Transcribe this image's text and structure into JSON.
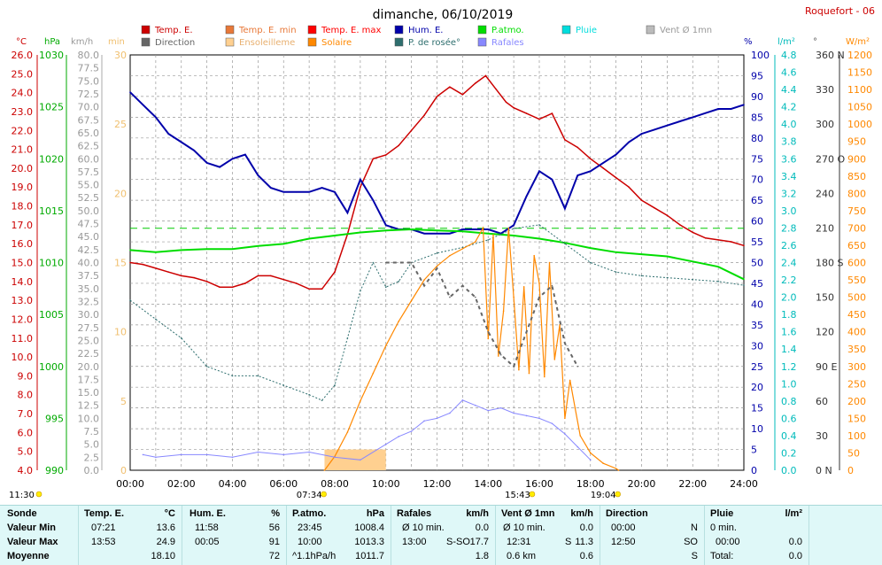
{
  "header": {
    "title": "dimanche, 06/10/2019",
    "station": "Roquefort - 06"
  },
  "legend": [
    {
      "label": "Temp. E.",
      "color": "#cc0000"
    },
    {
      "label": "Temp. E. min",
      "color": "#e87838"
    },
    {
      "label": "Temp. E. max",
      "color": "#ff0000"
    },
    {
      "label": "Hum. E.",
      "color": "#0000aa"
    },
    {
      "label": "P.atmo.",
      "color": "#00dd00"
    },
    {
      "label": "Pluie",
      "color": "#00dddd"
    },
    {
      "label": "Vent Ø 1mn",
      "color": "#bbbbbb"
    },
    {
      "label": "Direction",
      "color": "#666666"
    },
    {
      "label": "Ensoleilleme",
      "color": "#ffd090"
    },
    {
      "label": "Solaire",
      "color": "#ff8800"
    },
    {
      "label": "P. de rosée°",
      "color": "#2e6e6e"
    },
    {
      "label": "Rafales",
      "color": "#8888ff"
    }
  ],
  "axis_units": {
    "temp": "°C",
    "press": "hPa",
    "wind": "km/h",
    "min": "min",
    "hum": "%",
    "rain": "l/m²",
    "dir": "°",
    "solar": "W/m²"
  },
  "axis_ticks": {
    "temp": [
      "26.0",
      "25.0",
      "24.0",
      "23.0",
      "22.0",
      "21.0",
      "20.0",
      "19.0",
      "18.0",
      "17.0",
      "16.0",
      "15.0",
      "14.0",
      "13.0",
      "12.0",
      "11.0",
      "10.0",
      "9.0",
      "8.0",
      "7.0",
      "6.0",
      "5.0",
      "4.0"
    ],
    "press": [
      "1030",
      "1025",
      "1020",
      "1015",
      "1010",
      "1005",
      "1000",
      "995",
      "990"
    ],
    "wind": [
      "80.0",
      "77.5",
      "75.0",
      "72.5",
      "70.0",
      "67.5",
      "65.0",
      "62.5",
      "60.0",
      "57.5",
      "55.0",
      "52.5",
      "50.0",
      "47.5",
      "45.0",
      "42.5",
      "40.0",
      "37.5",
      "35.0",
      "32.5",
      "30.0",
      "27.5",
      "25.0",
      "22.5",
      "20.0",
      "17.5",
      "15.0",
      "12.5",
      "10.0",
      "7.5",
      "5.0",
      "2.5",
      "0.0"
    ],
    "min": [
      "30",
      "25",
      "20",
      "15",
      "10",
      "5",
      "0"
    ],
    "hum": [
      "100",
      "95",
      "90",
      "85",
      "80",
      "75",
      "70",
      "65",
      "60",
      "55",
      "50",
      "45",
      "40",
      "35",
      "30",
      "25",
      "20",
      "15",
      "10",
      "5",
      "0"
    ],
    "rain": [
      "4.8",
      "4.6",
      "4.4",
      "4.2",
      "4.0",
      "3.8",
      "3.6",
      "3.4",
      "3.2",
      "3.0",
      "2.8",
      "2.6",
      "2.4",
      "2.2",
      "2.0",
      "1.8",
      "1.6",
      "1.4",
      "1.2",
      "1.0",
      "0.8",
      "0.6",
      "0.4",
      "0.2",
      "0.0"
    ],
    "dir": [
      "360 N",
      "330",
      "300",
      "270 O",
      "240",
      "210",
      "180 S",
      "150",
      "120",
      "90 E",
      "60",
      "30",
      "0 N"
    ],
    "solar": [
      "1200",
      "1150",
      "1100",
      "1050",
      "1000",
      "950",
      "900",
      "850",
      "800",
      "750",
      "700",
      "650",
      "600",
      "550",
      "500",
      "450",
      "400",
      "350",
      "300",
      "250",
      "200",
      "150",
      "100",
      "50",
      "0"
    ],
    "time": [
      "00:00",
      "02:00",
      "04:00",
      "06:00",
      "08:00",
      "10:00",
      "12:00",
      "14:00",
      "16:00",
      "18:00",
      "20:00",
      "22:00",
      "24:00"
    ]
  },
  "sun_markers": {
    "day_length": "11:30",
    "sunrise": "07:34",
    "noon": "15:43",
    "sunset": "19:04"
  },
  "chart_data": {
    "type": "line",
    "x_unit": "hours",
    "xlim": [
      0,
      24
    ],
    "series": [
      {
        "name": "Temp. E.",
        "unit": "°C",
        "ylim": [
          4,
          26
        ],
        "x": [
          0,
          0.5,
          1,
          1.5,
          2,
          2.5,
          3,
          3.5,
          4,
          4.5,
          5,
          5.5,
          6,
          6.5,
          7,
          7.5,
          8,
          8.5,
          9,
          9.5,
          10,
          10.5,
          11,
          11.5,
          12,
          12.5,
          13,
          13.5,
          13.9,
          14.3,
          14.7,
          15,
          15.5,
          16,
          16.5,
          17,
          17.5,
          18,
          18.5,
          19,
          19.5,
          20,
          20.5,
          21,
          21.5,
          22,
          22.5,
          23,
          23.5,
          24
        ],
        "y": [
          15.0,
          14.9,
          14.7,
          14.5,
          14.3,
          14.2,
          14.0,
          13.7,
          13.7,
          13.9,
          14.3,
          14.3,
          14.1,
          13.9,
          13.6,
          13.6,
          14.5,
          16.5,
          19.0,
          20.5,
          20.7,
          21.2,
          22.0,
          22.8,
          23.8,
          24.3,
          23.9,
          24.5,
          24.9,
          24.2,
          23.5,
          23.2,
          22.9,
          22.6,
          22.9,
          21.5,
          21.1,
          20.5,
          20.0,
          19.5,
          19.0,
          18.3,
          17.9,
          17.5,
          17.0,
          16.6,
          16.3,
          16.2,
          16.1,
          15.9
        ]
      },
      {
        "name": "Hum. E.",
        "unit": "%",
        "ylim": [
          0,
          100
        ],
        "x": [
          0,
          0.5,
          1,
          1.5,
          2,
          2.5,
          3,
          3.5,
          4,
          4.5,
          5,
          5.5,
          6,
          6.5,
          7,
          7.5,
          8,
          8.5,
          9,
          9.5,
          10,
          10.5,
          11,
          11.5,
          12,
          12.5,
          13,
          13.5,
          14,
          14.5,
          15,
          15.5,
          16,
          16.5,
          17,
          17.5,
          18,
          18.5,
          19,
          19.5,
          20,
          20.5,
          21,
          21.5,
          22,
          22.5,
          23,
          23.5,
          24
        ],
        "y": [
          91,
          88,
          85,
          81,
          79,
          77,
          74,
          73,
          75,
          76,
          71,
          68,
          67,
          67,
          67,
          68,
          67,
          62,
          70,
          65,
          59,
          58,
          58,
          57,
          57,
          57,
          58,
          58,
          58,
          57,
          59,
          66,
          72,
          70,
          63,
          71,
          72,
          74,
          76,
          79,
          81,
          82,
          83,
          84,
          85,
          86,
          87,
          87,
          88
        ]
      },
      {
        "name": "P.atmo.",
        "unit": "hPa",
        "ylim": [
          990,
          1030
        ],
        "x": [
          0,
          1,
          2,
          3,
          4,
          5,
          6,
          7,
          8,
          9,
          10,
          11,
          12,
          13,
          14,
          15,
          16,
          17,
          18,
          19,
          20,
          21,
          22,
          23,
          24
        ],
        "y": [
          1011.2,
          1011.0,
          1011.2,
          1011.3,
          1011.3,
          1011.6,
          1011.8,
          1012.3,
          1012.6,
          1012.9,
          1013.1,
          1013.2,
          1013.1,
          1013.0,
          1012.8,
          1012.6,
          1012.3,
          1011.9,
          1011.4,
          1011.0,
          1010.8,
          1010.6,
          1010.1,
          1009.6,
          1008.4
        ]
      },
      {
        "name": "P. de rosée°",
        "unit": "°C",
        "ylim": [
          4,
          26
        ],
        "x": [
          0,
          1,
          2,
          3,
          4,
          5,
          6,
          7,
          7.5,
          8,
          8.5,
          9,
          9.5,
          10,
          10.5,
          11,
          12,
          13,
          14,
          14.5,
          15,
          16,
          17,
          18,
          19,
          20,
          21,
          22,
          23,
          24
        ],
        "y": [
          13.0,
          12.0,
          11.0,
          9.5,
          9.0,
          9.0,
          8.5,
          8.0,
          7.7,
          8.5,
          11.0,
          13.5,
          15.0,
          13.7,
          14.0,
          15.0,
          15.5,
          15.8,
          16.2,
          16.5,
          16.8,
          17.0,
          16.0,
          15.0,
          14.5,
          14.3,
          14.2,
          14.1,
          14.0,
          13.8
        ]
      },
      {
        "name": "Solaire",
        "unit": "W/m²",
        "ylim": [
          0,
          1200
        ],
        "x": [
          7.6,
          8,
          8.5,
          9,
          9.5,
          10,
          10.5,
          11,
          11.5,
          12,
          12.5,
          13,
          13.5,
          13.8,
          14,
          14.2,
          14.4,
          14.6,
          14.8,
          15,
          15.2,
          15.4,
          15.6,
          15.8,
          16,
          16.2,
          16.4,
          16.6,
          16.8,
          17,
          17.2,
          17.4,
          17.6,
          18,
          18.5,
          19,
          19.1
        ],
        "y": [
          0,
          40,
          110,
          200,
          280,
          360,
          430,
          490,
          550,
          590,
          620,
          640,
          660,
          700,
          380,
          680,
          330,
          460,
          700,
          500,
          290,
          530,
          280,
          620,
          540,
          270,
          600,
          320,
          420,
          150,
          260,
          180,
          100,
          50,
          20,
          5,
          0
        ]
      },
      {
        "name": "Rafales",
        "unit": "km/h",
        "ylim": [
          0,
          80
        ],
        "x": [
          0.5,
          1,
          2,
          3,
          4,
          5,
          6,
          7,
          8,
          9,
          10,
          10.5,
          11,
          11.5,
          12,
          12.5,
          13,
          13.5,
          14,
          14.5,
          15,
          15.5,
          16,
          16.5,
          17,
          17.5,
          18
        ],
        "y": [
          3.0,
          2.5,
          3.0,
          3.0,
          2.5,
          3.5,
          3.0,
          3.5,
          2.5,
          2.0,
          5.0,
          6.5,
          7.5,
          9.5,
          10.0,
          11.0,
          13.5,
          12.5,
          11.5,
          12.0,
          11.0,
          10.5,
          10.0,
          9.0,
          7.0,
          4.5,
          2.0
        ]
      },
      {
        "name": "Direction",
        "unit": "°",
        "ylim": [
          0,
          360
        ],
        "x": [
          10,
          11,
          11.5,
          12,
          12.5,
          13,
          13.5,
          14,
          14.5,
          15,
          15.5,
          16,
          16.5,
          17,
          17.5
        ],
        "y": [
          180,
          180,
          160,
          175,
          150,
          160,
          150,
          120,
          100,
          90,
          120,
          150,
          160,
          110,
          90
        ]
      }
    ],
    "sunshine_minutes": {
      "start": 7.6,
      "end": 10.0,
      "value": 1.5
    }
  },
  "footer": {
    "sonde": {
      "title": "Sonde",
      "rows": [
        "Valeur Min",
        "Valeur Max",
        "Moyenne"
      ]
    },
    "temp": {
      "title": "Temp. E.",
      "unit": "°C",
      "rows": [
        [
          "07:21",
          "13.6"
        ],
        [
          "13:53",
          "24.9"
        ],
        [
          "",
          "18.10"
        ]
      ]
    },
    "hum": {
      "title": "Hum. E.",
      "unit": "%",
      "rows": [
        [
          "11:58",
          "56"
        ],
        [
          "00:05",
          "91"
        ],
        [
          "",
          "72"
        ]
      ]
    },
    "press": {
      "title": "P.atmo.",
      "unit": "hPa",
      "rows": [
        [
          "23:45",
          "1008.4"
        ],
        [
          "10:00",
          "1013.3"
        ],
        [
          "^1.1hPa/h",
          "1011.7"
        ]
      ]
    },
    "gust": {
      "title": "Rafales",
      "unit": "km/h",
      "rows": [
        [
          "Ø 10 min.",
          "",
          "0.0"
        ],
        [
          "13:00",
          "S-SO",
          "17.7"
        ],
        [
          "",
          "",
          "1.8"
        ]
      ]
    },
    "wind": {
      "title": "Vent Ø 1mn",
      "unit": "km/h",
      "rows": [
        [
          "Ø 10 min.",
          "",
          "0.0"
        ],
        [
          "12:31",
          "S",
          "11.3"
        ],
        [
          "0.6 km",
          "",
          "0.6"
        ]
      ]
    },
    "dir": {
      "title": "Direction",
      "rows": [
        [
          "00:00",
          "N"
        ],
        [
          "12:50",
          "SO"
        ],
        [
          "",
          "S"
        ]
      ]
    },
    "rain": {
      "title": "Pluie",
      "unit": "l/m²",
      "rows": [
        [
          "0 min.",
          ""
        ],
        [
          "00:00",
          "0.0"
        ],
        [
          "Total:",
          "0.0"
        ]
      ]
    }
  }
}
